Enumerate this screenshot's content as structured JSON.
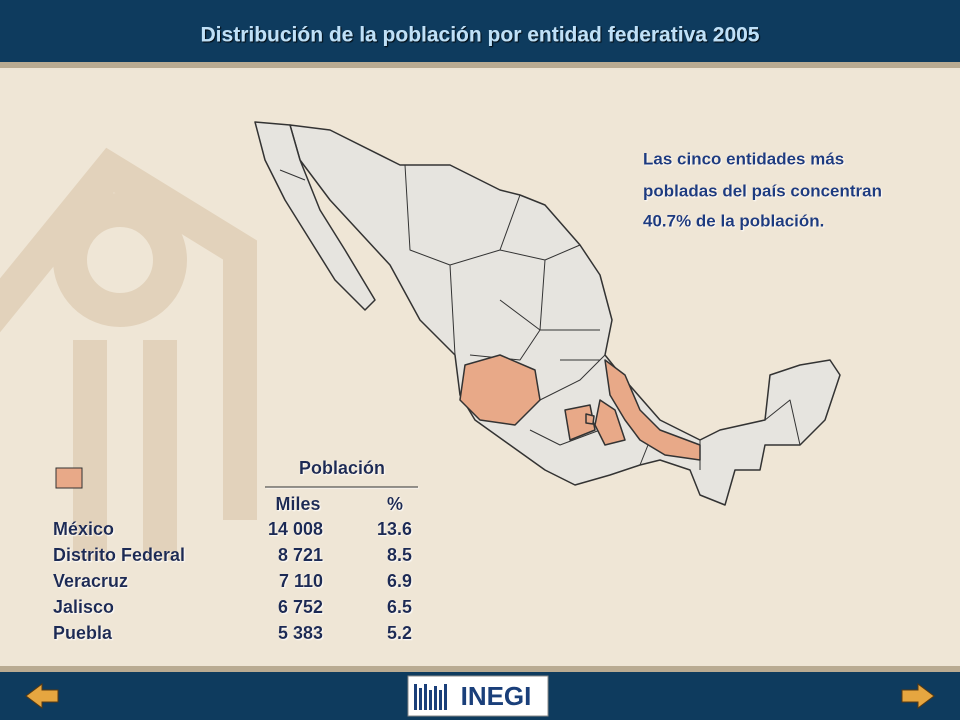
{
  "header": {
    "title": "Distribución de la población por entidad federativa 2005"
  },
  "annotation": {
    "lines": [
      "Las cinco entidades más",
      "pobladas del país concentran",
      "40.7% de la población."
    ]
  },
  "table": {
    "group_header": "Población",
    "columns": [
      "Miles",
      "%"
    ],
    "rows": [
      [
        "México",
        "14 008",
        "13.6"
      ],
      [
        "Distrito Federal",
        "8 721",
        "8.5"
      ],
      [
        "Veracruz",
        "7 110",
        "6.9"
      ],
      [
        "Jalisco",
        "6 752",
        "6.5"
      ],
      [
        "Puebla",
        "5 383",
        "5.2"
      ]
    ]
  },
  "footer": {
    "logo": "INEGI"
  }
}
